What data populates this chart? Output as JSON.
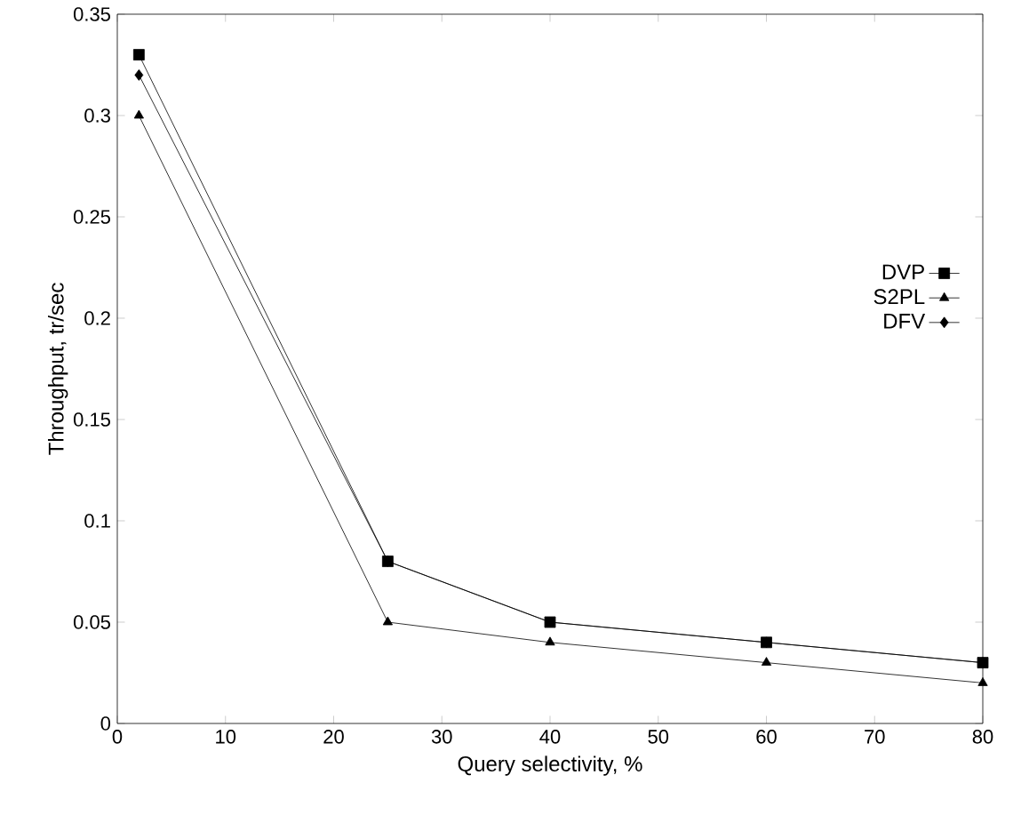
{
  "chart_data": {
    "type": "line",
    "xlabel": "Query selectivity, %",
    "ylabel": "Throughput, tr/sec",
    "x": [
      2,
      25,
      40,
      60,
      80
    ],
    "series": [
      {
        "name": "DVP",
        "color": "#000000",
        "marker": "square",
        "values": [
          0.33,
          0.08,
          0.05,
          0.04,
          0.03
        ]
      },
      {
        "name": "S2PL",
        "color": "#000000",
        "marker": "triangle",
        "values": [
          0.3,
          0.05,
          0.04,
          0.03,
          0.02
        ]
      },
      {
        "name": "DFV",
        "color": "#000000",
        "marker": "diamond",
        "values": [
          0.32,
          0.08,
          0.05,
          0.04,
          0.03
        ]
      }
    ],
    "xlim": [
      0,
      80
    ],
    "ylim": [
      0,
      0.35
    ],
    "xticks": [
      0,
      10,
      20,
      30,
      40,
      50,
      60,
      70,
      80
    ],
    "yticks": [
      0,
      0.05,
      0.1,
      0.15,
      0.2,
      0.25,
      0.3,
      0.35
    ],
    "legend": "right",
    "grid": false,
    "line_style": "solid"
  }
}
